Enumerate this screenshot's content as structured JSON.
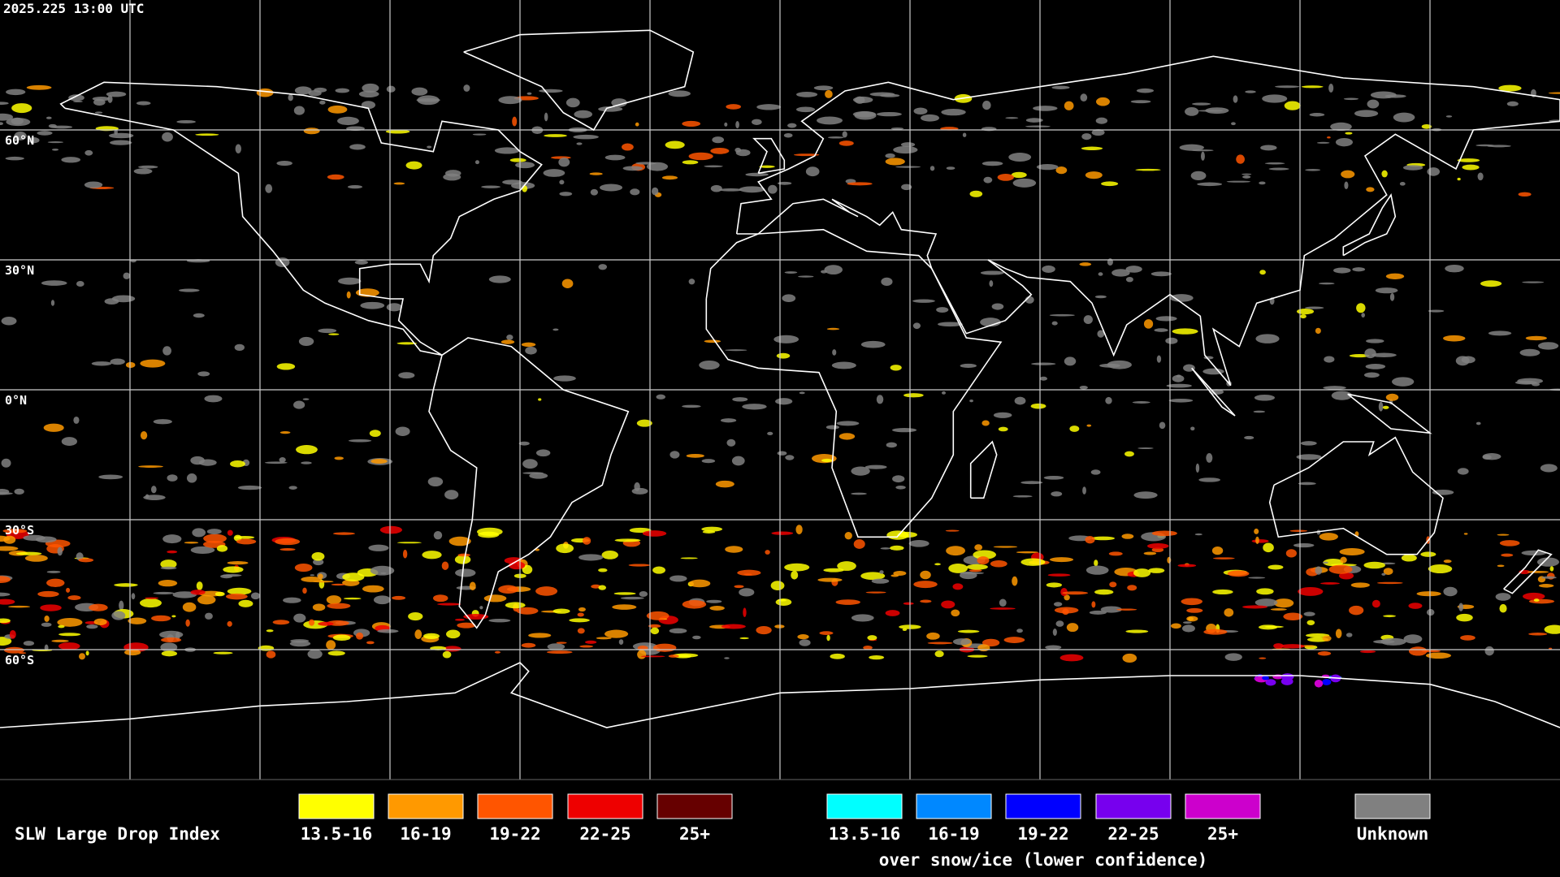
{
  "header": {
    "timestamp": "2025.225 13:00 UTC"
  },
  "map": {
    "lat_labels": [
      "60°N",
      "30°N",
      "0°N",
      "30°S",
      "60°S"
    ]
  },
  "legend": {
    "title": "SLW Large Drop Index",
    "groups": [
      {
        "items": [
          {
            "label": "13.5-16",
            "color": "#ffff00"
          },
          {
            "label": "16-19",
            "color": "#ff9900"
          },
          {
            "label": "19-22",
            "color": "#ff5500"
          },
          {
            "label": "22-25",
            "color": "#ee0000"
          },
          {
            "label": "25+",
            "color": "#660000"
          }
        ]
      },
      {
        "items": [
          {
            "label": "13.5-16",
            "color": "#00ffff"
          },
          {
            "label": "16-19",
            "color": "#0088ff"
          },
          {
            "label": "19-22",
            "color": "#0000ff"
          },
          {
            "label": "22-25",
            "color": "#7700ee"
          },
          {
            "label": "25+",
            "color": "#cc00cc"
          }
        ],
        "caption": "over snow/ice (lower confidence)"
      }
    ],
    "unknown": {
      "label": "Unknown",
      "color": "#808080"
    }
  }
}
